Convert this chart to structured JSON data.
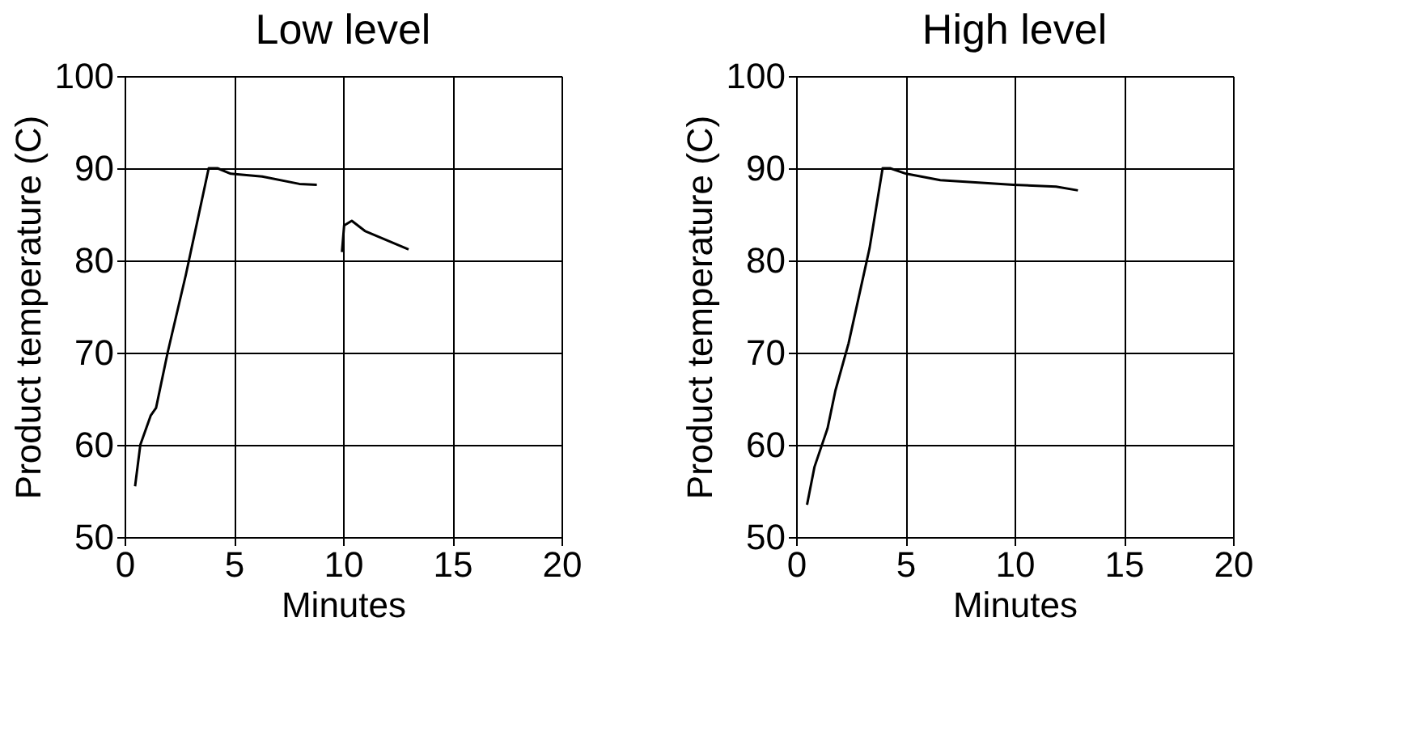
{
  "chart_data": [
    {
      "type": "line",
      "title": "Low level",
      "xlabel": "Minutes",
      "ylabel": "Product temperature (C)",
      "xlim": [
        0,
        20
      ],
      "ylim": [
        50,
        100
      ],
      "xticks": [
        0,
        5,
        10,
        15,
        20
      ],
      "yticks": [
        50,
        60,
        70,
        80,
        90,
        100
      ],
      "grid": true,
      "marker": "none",
      "line_style": "solid",
      "series": [
        {
          "color": "#000000",
          "x": [
            0.48,
            0.72,
            1.2,
            1.44,
            1.97,
            2.8,
            3.85,
            4.25,
            4.86,
            6.3,
            8.0,
            8.8,
            9.4,
            9.95,
            10.05,
            10.4,
            11.0,
            13.0
          ],
          "values": [
            55.5,
            60,
            63.2,
            64,
            70,
            78.4,
            90,
            90,
            89.4,
            89.1,
            88.3,
            88.2,
            null,
            80.9,
            83.8,
            84.3,
            83.2,
            81.2
          ]
        }
      ]
    },
    {
      "type": "line",
      "title": "High level",
      "xlabel": "Minutes",
      "ylabel": "Product temperature (C)",
      "xlim": [
        0,
        20
      ],
      "ylim": [
        50,
        100
      ],
      "xticks": [
        0,
        5,
        10,
        15,
        20
      ],
      "yticks": [
        50,
        60,
        70,
        80,
        90,
        100
      ],
      "grid": true,
      "marker": "none",
      "line_style": "solid",
      "series": [
        {
          "color": "#000000",
          "x": [
            0.5,
            0.84,
            1.44,
            1.8,
            2.4,
            3.36,
            3.96,
            4.3,
            5.04,
            6.6,
            9.95,
            11.9,
            12.9
          ],
          "values": [
            53.5,
            57.6,
            61.8,
            65.9,
            71,
            81.3,
            90,
            90,
            89.4,
            88.7,
            88.2,
            88.0,
            87.6
          ]
        }
      ]
    }
  ]
}
